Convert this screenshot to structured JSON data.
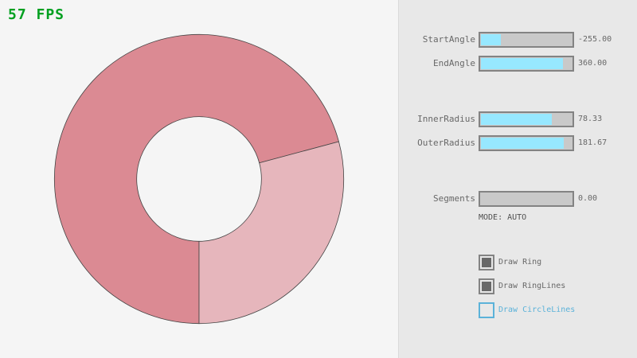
{
  "fps": "57 FPS",
  "colors": {
    "ring_dark": "#db8a93",
    "ring_light": "#e6b6bc",
    "slider_fill": "#97e8ff",
    "fps": "#00a020",
    "unchecked": "#5bb2d9"
  },
  "controls": {
    "sliders": [
      {
        "label": "StartAngle",
        "value": "-255.00",
        "min": -450,
        "max": 450,
        "num": -255
      },
      {
        "label": "EndAngle",
        "value": "360.00",
        "min": -450,
        "max": 450,
        "num": 360
      },
      {
        "label": "InnerRadius",
        "value": "78.33",
        "min": 0,
        "max": 100,
        "num": 78.33
      },
      {
        "label": "OuterRadius",
        "value": "181.67",
        "min": 0,
        "max": 200,
        "num": 181.67
      },
      {
        "label": "Segments",
        "value": "0.00",
        "min": 0,
        "max": 100,
        "num": 0
      }
    ],
    "mode": "MODE: AUTO",
    "checkboxes": [
      {
        "label": "Draw Ring",
        "checked": true
      },
      {
        "label": "Draw RingLines",
        "checked": true
      },
      {
        "label": "Draw CircleLines",
        "checked": false
      }
    ]
  }
}
